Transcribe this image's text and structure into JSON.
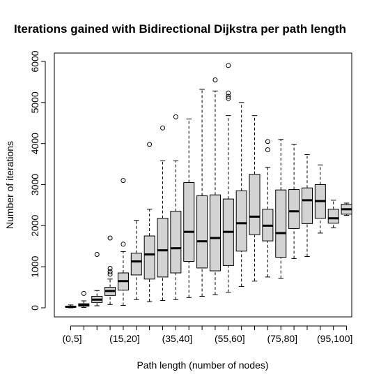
{
  "chart_data": {
    "type": "boxplot",
    "title": "Iterations gained with Bidirectional Dijkstra per path length",
    "xlabel": "Path length (number of nodes)",
    "ylabel": "Number of iterations",
    "ylim": [
      -250,
      6250
    ],
    "y_ticks": [
      0,
      1000,
      2000,
      3000,
      4000,
      5000,
      6000
    ],
    "y_tick_labels": [
      "0",
      "1000",
      "2000",
      "3000",
      "4000",
      "5000",
      "6000"
    ],
    "grid": false,
    "box_fill": "#d3d3d3",
    "categories": [
      "(0,5]",
      "(5,10]",
      "(10,15]",
      "(15,20]",
      "(20,25]",
      "(25,30]",
      "(30,35]",
      "(35,40]",
      "(40,45]",
      "(45,50]",
      "(50,55]",
      "(55,60]",
      "(60,65]",
      "(65,70]",
      "(70,75]",
      "(75,80]",
      "(80,85]",
      "(85,90]",
      "(90,95]",
      "(95,100]",
      "(100,105]",
      "(105,110]"
    ],
    "x_tick_labels": [
      "(0,5]",
      "",
      "(15,20]",
      "",
      "(35,40]",
      "",
      "(55,60]",
      "",
      "(75,80]",
      "",
      "(95,100]",
      ""
    ],
    "boxes": [
      {
        "min": 0,
        "q1": 15,
        "median": 25,
        "q3": 40,
        "max": 70,
        "outliers": []
      },
      {
        "min": 10,
        "q1": 40,
        "median": 65,
        "q3": 100,
        "max": 170,
        "outliers": [
          350
        ]
      },
      {
        "min": 50,
        "q1": 130,
        "median": 200,
        "q3": 280,
        "max": 420,
        "outliers": [
          1300
        ]
      },
      {
        "min": 80,
        "q1": 300,
        "median": 410,
        "q3": 500,
        "max": 700,
        "outliers": [
          820,
          880,
          960,
          1700
        ]
      },
      {
        "min": 60,
        "q1": 430,
        "median": 650,
        "q3": 850,
        "max": 1370,
        "outliers": [
          1550,
          3100
        ]
      },
      {
        "min": 200,
        "q1": 800,
        "median": 1130,
        "q3": 1330,
        "max": 2130,
        "outliers": []
      },
      {
        "min": 150,
        "q1": 700,
        "median": 1300,
        "q3": 1750,
        "max": 2400,
        "outliers": [
          3980
        ]
      },
      {
        "min": 180,
        "q1": 750,
        "median": 1400,
        "q3": 2180,
        "max": 3580,
        "outliers": [
          4380
        ]
      },
      {
        "min": 200,
        "q1": 850,
        "median": 1450,
        "q3": 2350,
        "max": 3580,
        "outliers": [
          4650
        ]
      },
      {
        "min": 250,
        "q1": 1130,
        "median": 1850,
        "q3": 3050,
        "max": 4600,
        "outliers": []
      },
      {
        "min": 280,
        "q1": 970,
        "median": 1620,
        "q3": 2730,
        "max": 5320,
        "outliers": []
      },
      {
        "min": 320,
        "q1": 900,
        "median": 1700,
        "q3": 2750,
        "max": 5280,
        "outliers": [
          5550
        ]
      },
      {
        "min": 380,
        "q1": 1030,
        "median": 1850,
        "q3": 2650,
        "max": 4680,
        "outliers": [
          5100,
          5150,
          5230,
          5900
        ]
      },
      {
        "min": 520,
        "q1": 1380,
        "median": 2060,
        "q3": 2850,
        "max": 5000,
        "outliers": []
      },
      {
        "min": 650,
        "q1": 1780,
        "median": 2220,
        "q3": 3250,
        "max": 4680,
        "outliers": []
      },
      {
        "min": 750,
        "q1": 1630,
        "median": 2000,
        "q3": 2400,
        "max": 3420,
        "outliers": [
          3850,
          4050
        ]
      },
      {
        "min": 720,
        "q1": 1230,
        "median": 1820,
        "q3": 2870,
        "max": 4100,
        "outliers": []
      },
      {
        "min": 1200,
        "q1": 1930,
        "median": 2350,
        "q3": 2880,
        "max": 3980,
        "outliers": []
      },
      {
        "min": 1250,
        "q1": 2050,
        "median": 2620,
        "q3": 2920,
        "max": 3730,
        "outliers": []
      },
      {
        "min": 1820,
        "q1": 2180,
        "median": 2600,
        "q3": 3000,
        "max": 3480,
        "outliers": []
      },
      {
        "min": 1950,
        "q1": 2060,
        "median": 2180,
        "q3": 2400,
        "max": 2620,
        "outliers": []
      },
      {
        "min": 2250,
        "q1": 2280,
        "median": 2400,
        "q3": 2520,
        "max": 2550,
        "outliers": []
      }
    ]
  }
}
